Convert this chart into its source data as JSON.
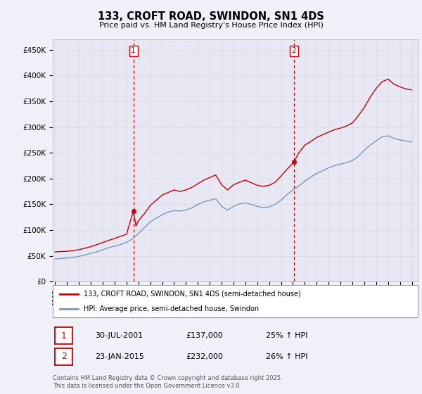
{
  "title": "133, CROFT ROAD, SWINDON, SN1 4DS",
  "subtitle": "Price paid vs. HM Land Registry's House Price Index (HPI)",
  "ylabel_ticks": [
    "£0",
    "£50K",
    "£100K",
    "£150K",
    "£200K",
    "£250K",
    "£300K",
    "£350K",
    "£400K",
    "£450K"
  ],
  "ytick_values": [
    0,
    50000,
    100000,
    150000,
    200000,
    250000,
    300000,
    350000,
    400000,
    450000
  ],
  "ylim": [
    0,
    470000
  ],
  "xlim_start": 1994.8,
  "xlim_end": 2025.5,
  "grid_color": "#d8d8e8",
  "background_color": "#f0f0f8",
  "plot_bg_color": "#e8e8f4",
  "red_color": "#cc0000",
  "blue_color": "#7799bb",
  "vline_color": "#cc0000",
  "marker1_x": 2001.58,
  "marker1_y": 137000,
  "marker2_x": 2015.07,
  "marker2_y": 232000,
  "legend_label_red": "133, CROFT ROAD, SWINDON, SN1 4DS (semi-detached house)",
  "legend_label_blue": "HPI: Average price, semi-detached house, Swindon",
  "sale1_date": "30-JUL-2001",
  "sale1_price": "£137,000",
  "sale1_hpi": "25% ↑ HPI",
  "sale2_date": "23-JAN-2015",
  "sale2_price": "£232,000",
  "sale2_hpi": "26% ↑ HPI",
  "footer": "Contains HM Land Registry data © Crown copyright and database right 2025.\nThis data is licensed under the Open Government Licence v3.0.",
  "hpi_red_data": [
    [
      1995.0,
      58000
    ],
    [
      1995.5,
      58500
    ],
    [
      1996.0,
      59000
    ],
    [
      1996.5,
      60500
    ],
    [
      1997.0,
      62000
    ],
    [
      1997.5,
      65000
    ],
    [
      1998.0,
      68000
    ],
    [
      1998.5,
      72000
    ],
    [
      1999.0,
      76000
    ],
    [
      1999.5,
      80000
    ],
    [
      2000.0,
      84000
    ],
    [
      2000.5,
      88000
    ],
    [
      2001.0,
      92000
    ],
    [
      2001.58,
      137000
    ],
    [
      2001.8,
      108000
    ],
    [
      2002.0,
      118000
    ],
    [
      2002.5,
      132000
    ],
    [
      2003.0,
      148000
    ],
    [
      2003.5,
      158000
    ],
    [
      2004.0,
      168000
    ],
    [
      2004.5,
      173000
    ],
    [
      2005.0,
      178000
    ],
    [
      2005.5,
      175000
    ],
    [
      2006.0,
      178000
    ],
    [
      2006.5,
      183000
    ],
    [
      2007.0,
      190000
    ],
    [
      2007.5,
      197000
    ],
    [
      2008.0,
      202000
    ],
    [
      2008.5,
      207000
    ],
    [
      2009.0,
      188000
    ],
    [
      2009.5,
      178000
    ],
    [
      2010.0,
      188000
    ],
    [
      2010.5,
      193000
    ],
    [
      2011.0,
      197000
    ],
    [
      2011.5,
      192000
    ],
    [
      2012.0,
      187000
    ],
    [
      2012.5,
      185000
    ],
    [
      2013.0,
      187000
    ],
    [
      2013.5,
      193000
    ],
    [
      2014.0,
      205000
    ],
    [
      2014.5,
      218000
    ],
    [
      2015.07,
      232000
    ],
    [
      2015.5,
      250000
    ],
    [
      2016.0,
      265000
    ],
    [
      2016.5,
      272000
    ],
    [
      2017.0,
      280000
    ],
    [
      2017.5,
      285000
    ],
    [
      2018.0,
      290000
    ],
    [
      2018.5,
      295000
    ],
    [
      2019.0,
      298000
    ],
    [
      2019.5,
      302000
    ],
    [
      2020.0,
      308000
    ],
    [
      2020.5,
      322000
    ],
    [
      2021.0,
      338000
    ],
    [
      2021.5,
      358000
    ],
    [
      2022.0,
      375000
    ],
    [
      2022.5,
      388000
    ],
    [
      2023.0,
      393000
    ],
    [
      2023.5,
      383000
    ],
    [
      2024.0,
      378000
    ],
    [
      2024.5,
      374000
    ],
    [
      2025.0,
      372000
    ]
  ],
  "hpi_blue_data": [
    [
      1995.0,
      44000
    ],
    [
      1995.5,
      45000
    ],
    [
      1996.0,
      46000
    ],
    [
      1996.5,
      47000
    ],
    [
      1997.0,
      49000
    ],
    [
      1997.5,
      52000
    ],
    [
      1998.0,
      55000
    ],
    [
      1998.5,
      58000
    ],
    [
      1999.0,
      62000
    ],
    [
      1999.5,
      66000
    ],
    [
      2000.0,
      69000
    ],
    [
      2000.5,
      72000
    ],
    [
      2001.0,
      76000
    ],
    [
      2001.5,
      83000
    ],
    [
      2002.0,
      93000
    ],
    [
      2002.5,
      105000
    ],
    [
      2003.0,
      116000
    ],
    [
      2003.5,
      123000
    ],
    [
      2004.0,
      130000
    ],
    [
      2004.5,
      135000
    ],
    [
      2005.0,
      138000
    ],
    [
      2005.5,
      137000
    ],
    [
      2006.0,
      139000
    ],
    [
      2006.5,
      143000
    ],
    [
      2007.0,
      150000
    ],
    [
      2007.5,
      155000
    ],
    [
      2008.0,
      158000
    ],
    [
      2008.5,
      161000
    ],
    [
      2009.0,
      146000
    ],
    [
      2009.5,
      139000
    ],
    [
      2010.0,
      146000
    ],
    [
      2010.5,
      151000
    ],
    [
      2011.0,
      153000
    ],
    [
      2011.5,
      150000
    ],
    [
      2012.0,
      146000
    ],
    [
      2012.5,
      144000
    ],
    [
      2013.0,
      145000
    ],
    [
      2013.5,
      150000
    ],
    [
      2014.0,
      158000
    ],
    [
      2014.5,
      169000
    ],
    [
      2015.0,
      178000
    ],
    [
      2015.5,
      186000
    ],
    [
      2016.0,
      195000
    ],
    [
      2016.5,
      203000
    ],
    [
      2017.0,
      210000
    ],
    [
      2017.5,
      215000
    ],
    [
      2018.0,
      221000
    ],
    [
      2018.5,
      225000
    ],
    [
      2019.0,
      228000
    ],
    [
      2019.5,
      231000
    ],
    [
      2020.0,
      235000
    ],
    [
      2020.5,
      243000
    ],
    [
      2021.0,
      255000
    ],
    [
      2021.5,
      265000
    ],
    [
      2022.0,
      273000
    ],
    [
      2022.5,
      281000
    ],
    [
      2023.0,
      283000
    ],
    [
      2023.5,
      278000
    ],
    [
      2024.0,
      275000
    ],
    [
      2024.5,
      273000
    ],
    [
      2025.0,
      271000
    ]
  ]
}
